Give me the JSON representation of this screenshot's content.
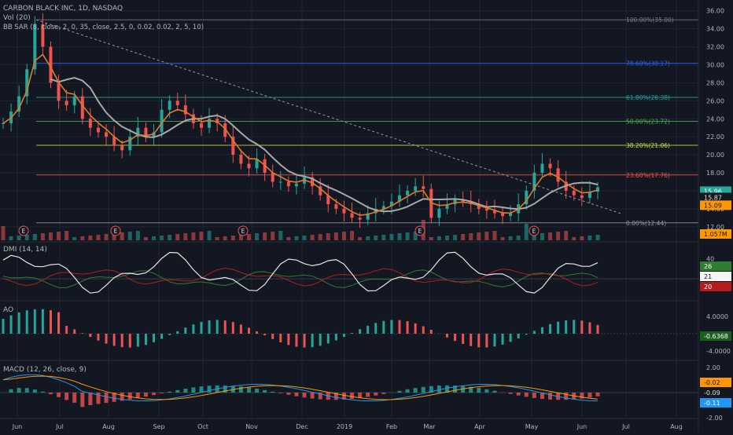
{
  "header": {
    "symbol_line": "CARBON BLACK INC, 1D, NASDAQ",
    "vol_label": "Vol (20)",
    "indicator_label": "BB SAR (8, close, 2, 0, 35, close, 2.5, 0, 0.02, 0.02, 2, 5, 10)"
  },
  "colors": {
    "background": "#131722",
    "grid": "#1f2433",
    "text": "#b2b5be",
    "up": "#26a69a",
    "down": "#ef5350",
    "ema_orange": "#e07a2c",
    "sma_gray": "#a8a8a8",
    "dmi_white": "#e6e6e6",
    "dmi_green": "#2e7d32",
    "dmi_red": "#b71c1c"
  },
  "chart_data": [
    {
      "type": "line",
      "panel": "price",
      "ylim": [
        10.5,
        36.5
      ],
      "y_ticks": [
        "36.00",
        "34.00",
        "32.00",
        "30.00",
        "28.00",
        "26.00",
        "24.00",
        "22.00",
        "20.00",
        "18.00",
        "16.00",
        "14.00",
        "12.00"
      ],
      "x_ticks": [
        "Jun",
        "Jul",
        "Aug",
        "Sep",
        "Oct",
        "Nov",
        "Dec",
        "2019",
        "Feb",
        "Mar",
        "Apr",
        "May",
        "Jun",
        "Jul",
        "Aug"
      ],
      "series": [
        {
          "values": [
            23.5,
            24.8,
            26.5,
            29.5,
            34.5,
            32,
            28,
            26,
            25.5,
            26.5,
            24,
            23,
            22.5,
            22,
            21,
            20.5,
            22,
            23,
            22,
            22.5,
            25,
            26,
            25.5,
            24.5,
            23.5,
            23,
            24,
            23.5,
            22,
            20,
            19,
            18.5,
            19.5,
            18,
            17,
            17,
            16.5,
            16.8,
            17.5,
            16.5,
            15.5,
            14.5,
            14,
            13.5,
            13,
            12.8,
            13.5,
            14,
            14.3,
            14.8,
            15.5,
            16,
            16.5,
            16.2,
            13,
            14,
            14.5,
            15,
            14.8,
            14.5,
            14,
            13.8,
            13.5,
            13.2,
            13.5,
            14.5,
            16,
            18,
            19,
            18.5,
            17,
            16,
            15.5,
            15.2,
            15.9,
            16.4
          ]
        }
      ],
      "hlines": [
        {
          "label": "100.00%(35.00)",
          "value": 35.0
        },
        {
          "label": "78.60%(30.17)",
          "value": 30.17
        },
        {
          "label": "61.80%(26.38)",
          "value": 26.38
        },
        {
          "label": "50.00%(23.72)",
          "value": 23.72
        },
        {
          "label": "38.20%(21.06)",
          "value": 21.06
        },
        {
          "label": "23.60%(17.76)",
          "value": 17.76
        },
        {
          "label": "0.00%(12.44)",
          "value": 12.44
        }
      ],
      "price_tags": [
        "15.96",
        "15.87",
        "15.09"
      ],
      "volume_tag": "1.057M",
      "earnings_marker": "E"
    },
    {
      "type": "line",
      "panel": "dmi",
      "title": "DMI (14, 14)",
      "y_ticks": [
        "40"
      ],
      "tags": [
        "26",
        "21",
        "20"
      ]
    },
    {
      "type": "bar",
      "panel": "ao",
      "title": "AO",
      "y_ticks": [
        "4.0000",
        "-4.0000"
      ],
      "tags": [
        "-0.6368"
      ]
    },
    {
      "type": "bar",
      "panel": "macd",
      "title": "MACD (12, 26, close, 9)",
      "y_ticks": [
        "2.00",
        "-2.00"
      ],
      "tags": [
        "-0.02",
        "-0.09",
        "-0.11"
      ]
    }
  ]
}
